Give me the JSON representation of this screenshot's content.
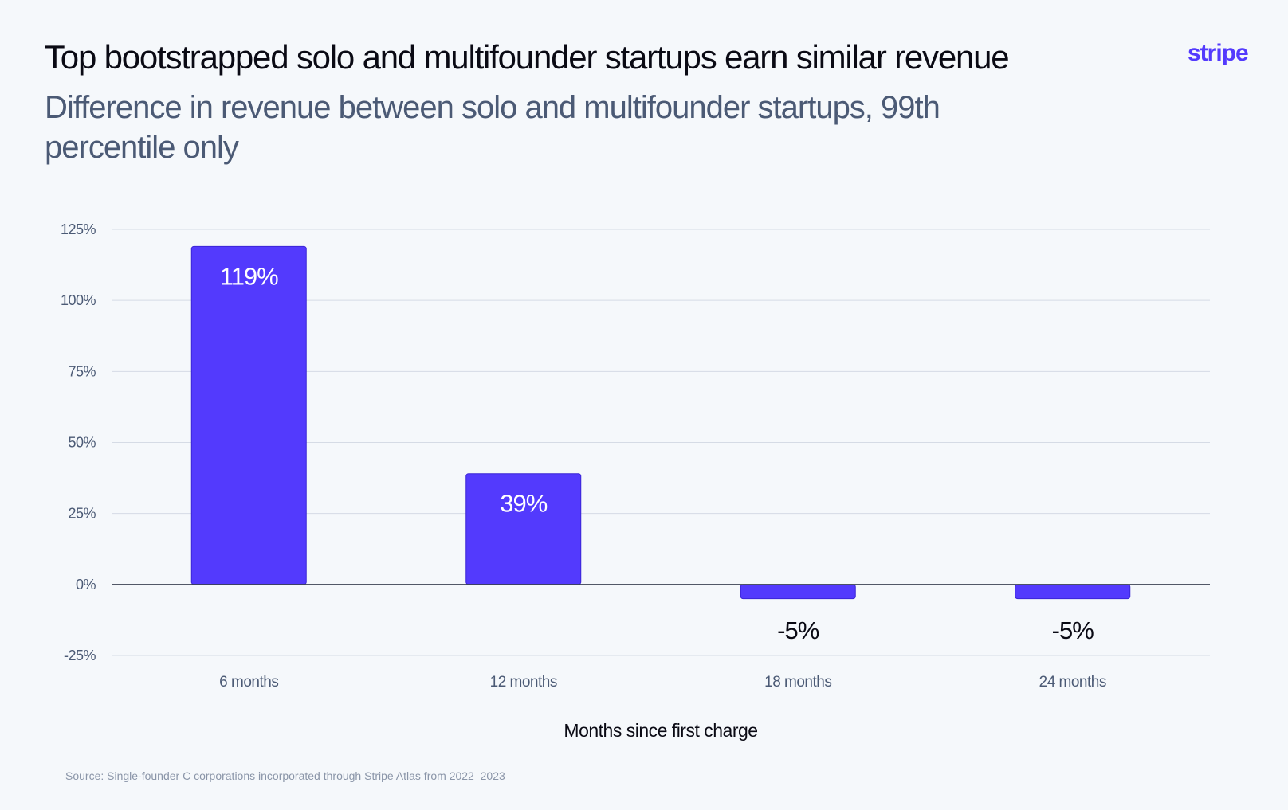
{
  "header": {
    "title": "Top bootstrapped solo and multifounder startups earn similar revenue",
    "subtitle": "Difference in revenue between solo and multifounder startups, 99th percentile only",
    "logo_text": "stripe"
  },
  "source": "Source: Single-founder C corporations incorporated through Stripe Atlas from 2022–2023",
  "colors": {
    "bar": "#533afd",
    "grid": "#d5dbe5",
    "zero_line": "#3a4152",
    "logo": "#533afd"
  },
  "chart_data": {
    "type": "bar",
    "title": "Top bootstrapped solo and multifounder startups earn similar revenue",
    "subtitle": "Difference in revenue between solo and multifounder startups, 99th percentile only",
    "categories": [
      "6 months",
      "12 months",
      "18 months",
      "24 months"
    ],
    "values": [
      119,
      39,
      -5,
      -5
    ],
    "data_labels": [
      "119%",
      "39%",
      "-5%",
      "-5%"
    ],
    "xlabel": "Months since first charge",
    "ylabel": "",
    "ylim": [
      -25,
      125
    ],
    "yticks": [
      125,
      100,
      75,
      50,
      25,
      0,
      -25
    ],
    "ytick_labels": [
      "125%",
      "100%",
      "75%",
      "50%",
      "25%",
      "0%",
      "-25%"
    ],
    "grid": true,
    "legend": "none"
  }
}
